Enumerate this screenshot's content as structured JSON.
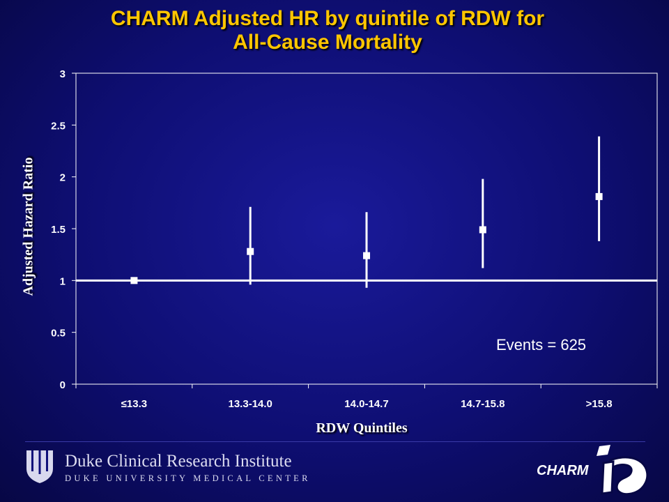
{
  "title_line1": "CHARM Adjusted HR by quintile of RDW for",
  "title_line2": "All-Cause Mortality",
  "footer": {
    "institute_name": "Duke Clinical Research Institute",
    "institute_sub": "DUKE UNIVERSITY MEDICAL CENTER",
    "charm_mark": "CHARM"
  },
  "colors": {
    "title": "#ffc600",
    "background": "#12128a",
    "marks": "#ffffff"
  },
  "chart_data": {
    "type": "scatter",
    "title": "CHARM Adjusted HR by quintile of RDW for All-Cause Mortality",
    "xlabel": "RDW Quintiles",
    "ylabel": "Adjusted Hazard Ratio",
    "categories": [
      "≤13.3",
      "13.3-14.0",
      "14.0-14.7",
      "14.7-15.8",
      ">15.8"
    ],
    "values": [
      1.0,
      1.28,
      1.24,
      1.49,
      1.81
    ],
    "ci_lower": [
      null,
      0.96,
      0.93,
      1.12,
      1.38
    ],
    "ci_upper": [
      null,
      1.71,
      1.66,
      1.98,
      2.39
    ],
    "reference_line": 1,
    "ylim": [
      0,
      3
    ],
    "yticks": [
      0,
      0.5,
      1,
      1.5,
      2,
      2.5,
      3
    ],
    "ytick_labels": [
      "0",
      "0.5",
      "1",
      "1.5",
      "2",
      "2.5",
      "3"
    ],
    "grid": false,
    "annotation": "Events = 625"
  }
}
